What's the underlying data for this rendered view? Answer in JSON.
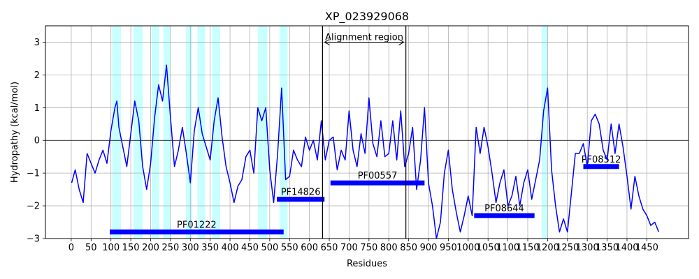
{
  "chart_data": {
    "type": "line",
    "title": "XP_023929068",
    "xlabel": "Residues",
    "ylabel": "Hydropathy (kcal/mol)",
    "xlim": [
      -65,
      1555
    ],
    "ylim": [
      -3,
      3.5
    ],
    "xticks": [
      0,
      50,
      100,
      150,
      200,
      250,
      300,
      350,
      400,
      450,
      500,
      550,
      600,
      650,
      700,
      750,
      800,
      850,
      900,
      950,
      1000,
      1050,
      1100,
      1150,
      1200,
      1250,
      1300,
      1350,
      1400,
      1450
    ],
    "yticks": [
      -3,
      -2,
      -1,
      0,
      1,
      2,
      3
    ],
    "grid": true,
    "series_color": "#0000ff",
    "band_color": "#c8ffff",
    "domain_color": "#0000ff",
    "hydropathy": {
      "x": [
        1,
        10,
        20,
        30,
        40,
        50,
        60,
        70,
        80,
        90,
        100,
        110,
        115,
        120,
        130,
        140,
        150,
        160,
        170,
        180,
        190,
        200,
        210,
        220,
        230,
        240,
        250,
        260,
        270,
        280,
        290,
        300,
        310,
        320,
        330,
        340,
        350,
        360,
        370,
        380,
        390,
        400,
        410,
        420,
        430,
        440,
        450,
        460,
        470,
        480,
        490,
        500,
        510,
        520,
        530,
        540,
        550,
        560,
        570,
        580,
        590,
        600,
        610,
        620,
        630,
        640,
        650,
        660,
        670,
        680,
        690,
        700,
        710,
        720,
        730,
        740,
        750,
        760,
        770,
        780,
        790,
        800,
        810,
        820,
        830,
        840,
        850,
        860,
        870,
        880,
        890,
        900,
        910,
        920,
        930,
        940,
        950,
        960,
        970,
        980,
        990,
        1000,
        1010,
        1020,
        1030,
        1040,
        1050,
        1060,
        1070,
        1080,
        1090,
        1100,
        1110,
        1120,
        1130,
        1140,
        1150,
        1160,
        1170,
        1180,
        1190,
        1200,
        1210,
        1220,
        1230,
        1240,
        1250,
        1260,
        1270,
        1280,
        1290,
        1300,
        1310,
        1320,
        1330,
        1340,
        1350,
        1360,
        1370,
        1380,
        1390,
        1400,
        1410,
        1420,
        1430,
        1440,
        1450,
        1460,
        1470,
        1480
      ],
      "y": [
        -1.3,
        -0.9,
        -1.5,
        -1.9,
        -0.4,
        -0.7,
        -1.0,
        -0.6,
        -0.3,
        -0.7,
        0.3,
        1.0,
        1.2,
        0.4,
        -0.2,
        -0.8,
        0.2,
        1.2,
        0.6,
        -0.8,
        -1.5,
        -0.7,
        0.7,
        1.7,
        1.2,
        2.3,
        0.7,
        -0.8,
        -0.3,
        0.4,
        -0.4,
        -1.3,
        0.3,
        1.0,
        0.2,
        -0.2,
        -0.6,
        0.6,
        1.3,
        0.1,
        -0.8,
        -1.3,
        -1.9,
        -1.4,
        -1.2,
        -0.5,
        -0.3,
        -1.0,
        1.0,
        0.6,
        1.0,
        -0.9,
        -1.9,
        -0.4,
        1.6,
        -1.2,
        -1.1,
        -0.3,
        -0.6,
        -0.8,
        0.1,
        -0.3,
        0.0,
        -0.6,
        0.6,
        -0.6,
        0.0,
        0.1,
        -0.9,
        -0.3,
        -0.6,
        0.9,
        -0.3,
        -0.8,
        0.2,
        -0.4,
        1.3,
        -0.1,
        -0.5,
        0.6,
        -0.5,
        -0.4,
        0.6,
        -0.6,
        0.9,
        -0.8,
        -0.4,
        0.4,
        -1.5,
        -0.6,
        1.0,
        -1.3,
        -2.0,
        -3.0,
        -2.5,
        -1.0,
        -0.3,
        -1.5,
        -2.2,
        -2.8,
        -2.3,
        -1.7,
        -2.3,
        0.4,
        -0.4,
        0.4,
        -0.2,
        -1.0,
        -1.9,
        -1.3,
        -0.9,
        -2.0,
        -1.7,
        -1.1,
        -2.0,
        -1.3,
        -0.9,
        -1.8,
        -1.2,
        -0.6,
        0.9,
        1.6,
        -0.9,
        -2.0,
        -2.8,
        -2.4,
        -2.8,
        -1.6,
        -0.4,
        -0.4,
        -0.1,
        -0.8,
        0.6,
        0.8,
        0.5,
        -0.3,
        -0.6,
        0.5,
        -0.4,
        0.5,
        -0.2,
        -1.1,
        -2.1,
        -1.1,
        -1.7,
        -2.1,
        -2.3,
        -2.6,
        -2.5,
        -2.8
      ]
    },
    "hydrophobic_bands": [
      {
        "start": 103,
        "end": 125
      },
      {
        "start": 157,
        "end": 180
      },
      {
        "start": 203,
        "end": 222
      },
      {
        "start": 232,
        "end": 250
      },
      {
        "start": 289,
        "end": 305
      },
      {
        "start": 318,
        "end": 337
      },
      {
        "start": 355,
        "end": 375
      },
      {
        "start": 470,
        "end": 494
      },
      {
        "start": 525,
        "end": 545
      },
      {
        "start": 1185,
        "end": 1200
      }
    ],
    "alignment_region": {
      "label": "Alignment region",
      "start": 633,
      "end": 843,
      "y": 3.0
    },
    "domains": [
      {
        "name": "PF01222",
        "start": 97,
        "end": 535,
        "y": -2.8
      },
      {
        "name": "PF14826",
        "start": 518,
        "end": 638,
        "y": -1.8
      },
      {
        "name": "PF00557",
        "start": 653,
        "end": 890,
        "y": -1.3
      },
      {
        "name": "PF08644",
        "start": 1015,
        "end": 1167,
        "y": -2.3
      },
      {
        "name": "PF08512",
        "start": 1290,
        "end": 1380,
        "y": -0.8
      }
    ]
  }
}
